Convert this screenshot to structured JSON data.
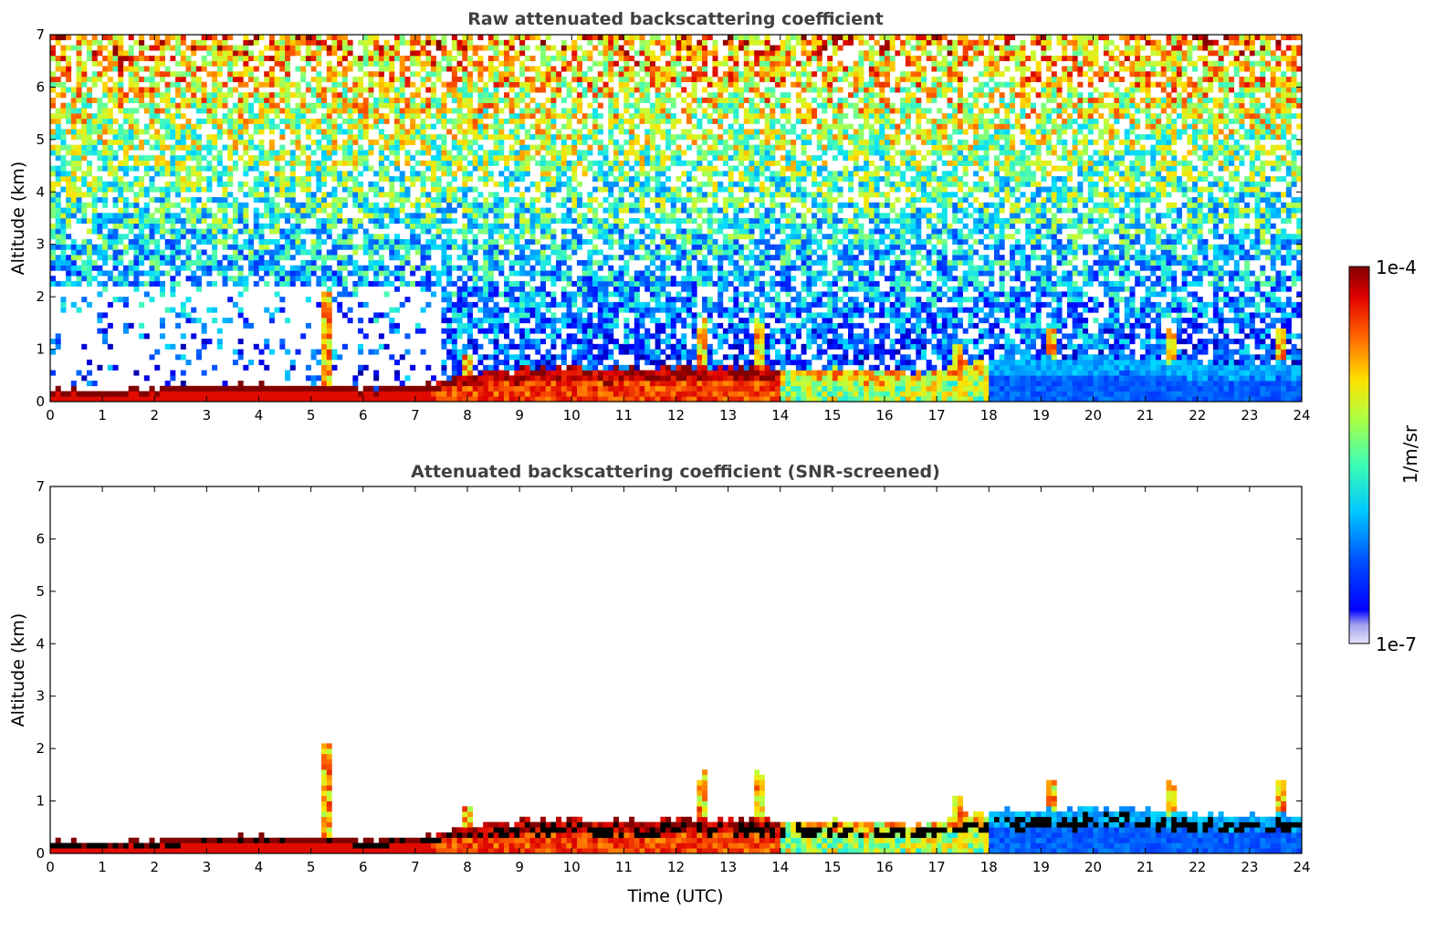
{
  "chart_data": [
    {
      "type": "heatmap",
      "title": "Raw attenuated backscattering coefficient",
      "xlabel": "",
      "ylabel": "Altitude (km)",
      "xlim": [
        0,
        24
      ],
      "ylim": [
        0,
        7
      ],
      "xticks": [
        0,
        1,
        2,
        3,
        4,
        5,
        6,
        7,
        8,
        9,
        10,
        11,
        12,
        13,
        14,
        15,
        16,
        17,
        18,
        19,
        20,
        21,
        22,
        23,
        24
      ],
      "yticks": [
        0,
        1,
        2,
        3,
        4,
        5,
        6,
        7
      ],
      "layer_top_km": {
        "x": [
          0,
          1,
          2,
          3,
          4,
          5,
          6,
          7,
          8,
          9,
          10,
          11,
          12,
          13,
          14,
          15,
          16,
          17,
          18,
          19,
          20,
          21,
          22,
          23,
          24
        ],
        "y": [
          0.25,
          0.22,
          0.25,
          0.3,
          0.35,
          0.3,
          0.25,
          0.3,
          0.5,
          0.6,
          0.65,
          0.6,
          0.65,
          0.65,
          0.6,
          0.6,
          0.55,
          0.6,
          0.8,
          0.85,
          0.85,
          0.85,
          0.75,
          0.75,
          0.75
        ]
      },
      "plumes": [
        {
          "time": 5.3,
          "top_km": 2.4
        },
        {
          "time": 8.0,
          "top_km": 1.0
        },
        {
          "time": 12.5,
          "top_km": 1.6
        },
        {
          "time": 13.6,
          "top_km": 1.6
        },
        {
          "time": 17.4,
          "top_km": 1.2
        },
        {
          "time": 19.2,
          "top_km": 1.5
        },
        {
          "time": 21.5,
          "top_km": 1.4
        },
        {
          "time": 23.6,
          "top_km": 1.6
        }
      ]
    },
    {
      "type": "heatmap",
      "title": "Attenuated backscattering coefficient (SNR-screened)",
      "xlabel": "Time (UTC)",
      "ylabel": "Altitude (km)",
      "xlim": [
        0,
        24
      ],
      "ylim": [
        0,
        7
      ],
      "xticks": [
        0,
        1,
        2,
        3,
        4,
        5,
        6,
        7,
        8,
        9,
        10,
        11,
        12,
        13,
        14,
        15,
        16,
        17,
        18,
        19,
        20,
        21,
        22,
        23,
        24
      ],
      "yticks": [
        0,
        1,
        2,
        3,
        4,
        5,
        6,
        7
      ]
    }
  ],
  "colorbar": {
    "max_label": "1e-4",
    "min_label": "1e-7",
    "unit_label": "1/m/sr",
    "scale": "log",
    "range": [
      1e-07,
      0.0001
    ]
  }
}
